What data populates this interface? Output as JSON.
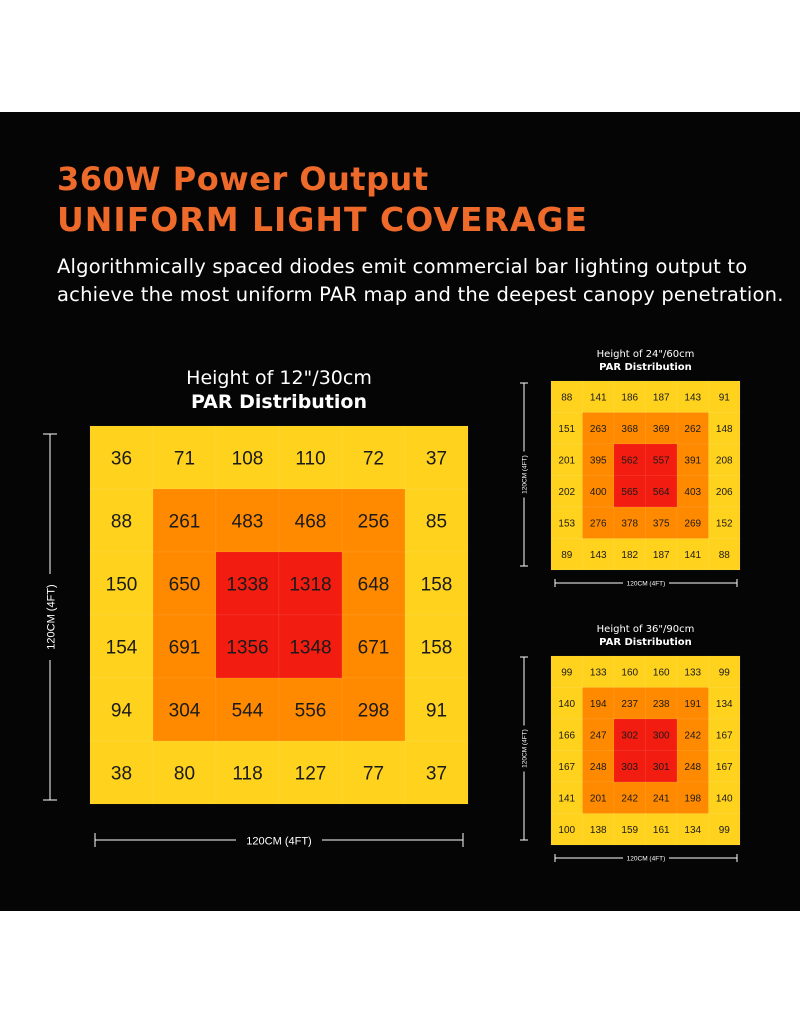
{
  "header": {
    "title_line1": "360W Power Output",
    "title_line2": "UNIFORM LIGHT COVERAGE",
    "subtitle_line1": "Algorithmically spaced diodes emit commercial bar lighting output to",
    "subtitle_line2": "achieve the most uniform PAR map and the deepest canopy penetration."
  },
  "colors": {
    "background": "#050505",
    "accent": "#ee6a2a",
    "level_low": "#ffd21e",
    "level_mid": "#ffa81a",
    "level_high": "#ff8a00",
    "level_peak": "#f31c10"
  },
  "chart_data": [
    {
      "type": "heatmap",
      "height_label": "Height of 12\"/30cm",
      "title": "PAR Distribution",
      "xlabel": "120CM (4FT)",
      "ylabel": "120CM (4FT)",
      "values": [
        [
          36,
          71,
          108,
          110,
          72,
          37
        ],
        [
          88,
          261,
          483,
          468,
          256,
          85
        ],
        [
          150,
          650,
          1338,
          1318,
          648,
          158
        ],
        [
          154,
          691,
          1356,
          1348,
          671,
          158
        ],
        [
          94,
          304,
          544,
          556,
          298,
          91
        ],
        [
          38,
          80,
          118,
          127,
          77,
          37
        ]
      ]
    },
    {
      "type": "heatmap",
      "height_label": "Height of 24\"/60cm",
      "title": "PAR Distribution",
      "xlabel": "120CM (4FT)",
      "ylabel": "120CM (4FT)",
      "values": [
        [
          88,
          141,
          186,
          187,
          143,
          91
        ],
        [
          151,
          263,
          368,
          369,
          262,
          148
        ],
        [
          201,
          395,
          562,
          557,
          391,
          208
        ],
        [
          202,
          400,
          565,
          564,
          403,
          206
        ],
        [
          153,
          276,
          378,
          375,
          269,
          152
        ],
        [
          89,
          143,
          182,
          187,
          141,
          88
        ]
      ]
    },
    {
      "type": "heatmap",
      "height_label": "Height of 36\"/90cm",
      "title": "PAR Distribution",
      "xlabel": "120CM (4FT)",
      "ylabel": "120CM (4FT)",
      "values": [
        [
          99,
          133,
          160,
          160,
          133,
          99
        ],
        [
          140,
          194,
          237,
          238,
          191,
          134
        ],
        [
          166,
          247,
          302,
          300,
          242,
          167
        ],
        [
          167,
          248,
          303,
          301,
          248,
          167
        ],
        [
          141,
          201,
          242,
          241,
          198,
          140
        ],
        [
          100,
          138,
          159,
          161,
          134,
          99
        ]
      ]
    }
  ]
}
